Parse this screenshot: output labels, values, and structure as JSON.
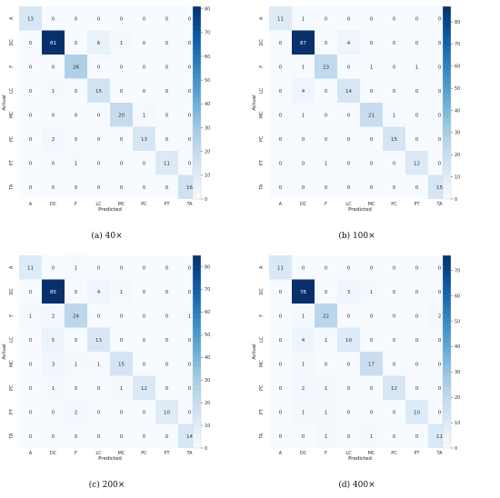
{
  "panels": [
    {
      "caption": "(a) 40×",
      "chart_data": {
        "type": "heatmap",
        "xlabel": "Predicted",
        "ylabel": "Actual",
        "x_labels": [
          "A",
          "DC",
          "F",
          "LC",
          "MC",
          "PC",
          "PT",
          "TA"
        ],
        "y_labels": [
          "A",
          "DC",
          "F",
          "LC",
          "MC",
          "PC",
          "PT",
          "TA"
        ],
        "matrix": [
          [
            13,
            0,
            0,
            0,
            0,
            0,
            0,
            0
          ],
          [
            0,
            81,
            0,
            6,
            1,
            0,
            0,
            0
          ],
          [
            0,
            0,
            26,
            0,
            0,
            0,
            0,
            0
          ],
          [
            0,
            1,
            0,
            15,
            0,
            0,
            0,
            0
          ],
          [
            0,
            0,
            0,
            0,
            20,
            1,
            0,
            0
          ],
          [
            0,
            2,
            0,
            0,
            0,
            13,
            0,
            0
          ],
          [
            0,
            0,
            1,
            0,
            0,
            0,
            11,
            0
          ],
          [
            0,
            0,
            0,
            0,
            0,
            0,
            0,
            16
          ]
        ],
        "colorbar_ticks": [
          0,
          10,
          20,
          30,
          40,
          50,
          60,
          70,
          80
        ],
        "colorbar_max": 81,
        "colormap": "Blues"
      }
    },
    {
      "caption": "(b) 100×",
      "chart_data": {
        "type": "heatmap",
        "xlabel": "Predicted",
        "ylabel": "Actual",
        "x_labels": [
          "A",
          "DC",
          "F",
          "LC",
          "MC",
          "PC",
          "PT",
          "TA"
        ],
        "y_labels": [
          "A",
          "DC",
          "F",
          "LC",
          "MC",
          "PC",
          "PT",
          "TA"
        ],
        "matrix": [
          [
            11,
            1,
            0,
            0,
            0,
            0,
            0,
            0
          ],
          [
            0,
            87,
            0,
            4,
            0,
            0,
            0,
            0
          ],
          [
            0,
            1,
            23,
            0,
            1,
            0,
            1,
            0
          ],
          [
            0,
            4,
            0,
            14,
            0,
            0,
            0,
            0
          ],
          [
            0,
            1,
            0,
            0,
            21,
            1,
            0,
            0
          ],
          [
            0,
            0,
            0,
            0,
            0,
            15,
            0,
            0
          ],
          [
            0,
            0,
            1,
            0,
            0,
            0,
            12,
            0
          ],
          [
            0,
            0,
            0,
            0,
            0,
            0,
            0,
            15
          ]
        ],
        "colorbar_ticks": [
          0,
          10,
          20,
          30,
          40,
          50,
          60,
          70,
          80
        ],
        "colorbar_max": 87,
        "colormap": "Blues"
      }
    },
    {
      "caption": "(c) 200×",
      "chart_data": {
        "type": "heatmap",
        "xlabel": "Predicted",
        "ylabel": "Actual",
        "x_labels": [
          "A",
          "DC",
          "F",
          "LC",
          "MC",
          "PC",
          "PT",
          "TA"
        ],
        "y_labels": [
          "A",
          "DC",
          "F",
          "LC",
          "MC",
          "PC",
          "PT",
          "TA"
        ],
        "matrix": [
          [
            11,
            0,
            1,
            0,
            0,
            0,
            0,
            0
          ],
          [
            0,
            85,
            0,
            4,
            1,
            0,
            0,
            0
          ],
          [
            1,
            2,
            24,
            0,
            0,
            0,
            0,
            1
          ],
          [
            0,
            5,
            0,
            13,
            0,
            0,
            0,
            0
          ],
          [
            0,
            3,
            1,
            1,
            15,
            0,
            0,
            0
          ],
          [
            0,
            1,
            0,
            0,
            1,
            12,
            0,
            0
          ],
          [
            0,
            0,
            2,
            0,
            0,
            0,
            10,
            0
          ],
          [
            0,
            0,
            0,
            0,
            0,
            0,
            0,
            14
          ]
        ],
        "colorbar_ticks": [
          0,
          10,
          20,
          30,
          40,
          50,
          60,
          70,
          80
        ],
        "colorbar_max": 85,
        "colormap": "Blues"
      }
    },
    {
      "caption": "(d) 400×",
      "chart_data": {
        "type": "heatmap",
        "xlabel": "Predicted",
        "ylabel": "Actual",
        "x_labels": [
          "A",
          "DC",
          "F",
          "LC",
          "MC",
          "PC",
          "PT",
          "TA"
        ],
        "y_labels": [
          "A",
          "DC",
          "F",
          "LC",
          "MC",
          "PC",
          "PT",
          "TA"
        ],
        "matrix": [
          [
            11,
            0,
            0,
            0,
            0,
            0,
            0,
            0
          ],
          [
            0,
            76,
            0,
            3,
            1,
            0,
            0,
            0
          ],
          [
            0,
            1,
            22,
            0,
            0,
            0,
            0,
            2
          ],
          [
            0,
            4,
            1,
            10,
            0,
            0,
            0,
            0
          ],
          [
            0,
            1,
            0,
            0,
            17,
            0,
            0,
            0
          ],
          [
            0,
            2,
            1,
            0,
            0,
            12,
            0,
            0
          ],
          [
            0,
            1,
            1,
            0,
            0,
            0,
            10,
            0
          ],
          [
            0,
            0,
            1,
            0,
            1,
            0,
            0,
            11
          ]
        ],
        "colorbar_ticks": [
          0,
          10,
          20,
          30,
          40,
          50,
          60,
          70
        ],
        "colorbar_max": 76,
        "colormap": "Blues"
      }
    }
  ]
}
